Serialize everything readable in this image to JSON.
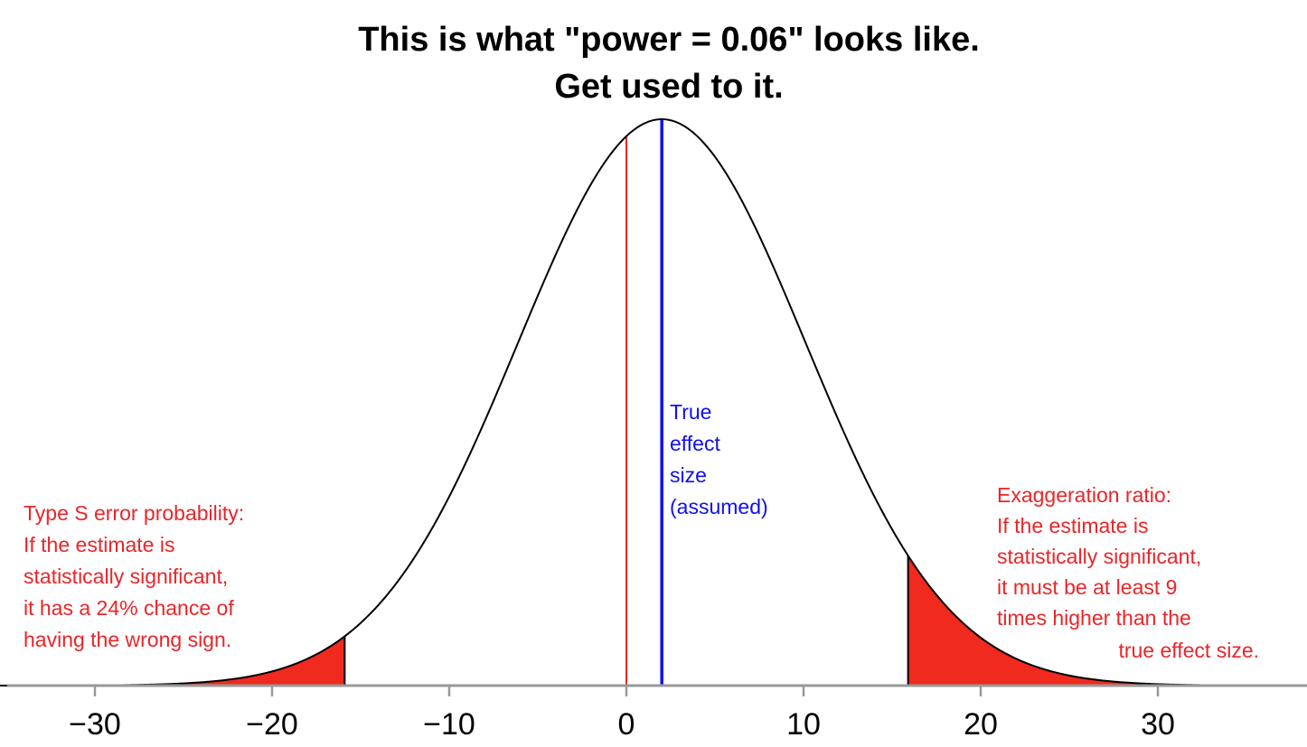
{
  "chart_data": {
    "type": "area",
    "title_lines": [
      "This is what \"power = 0.06\" looks like.",
      "Get used to it."
    ],
    "xlabel": "",
    "ylabel": "",
    "x_ticks": [
      -30,
      -20,
      -10,
      0,
      10,
      20,
      30
    ],
    "x_tick_labels": [
      "−30",
      "−20",
      "−10",
      "0",
      "10",
      "20",
      "30"
    ],
    "xlim": [
      -38,
      38.5
    ],
    "grid": false,
    "distribution": {
      "kind": "normal",
      "mean": 2,
      "sd": 8.1
    },
    "shaded_regions": [
      {
        "name": "lower-tail",
        "from": -38,
        "to": -15.9,
        "color": "#f02a1e"
      },
      {
        "name": "upper-tail",
        "from": 15.9,
        "to": 38.5,
        "color": "#f02a1e"
      }
    ],
    "reference_lines": [
      {
        "name": "zero-line",
        "x": 0,
        "color": "#e8262a"
      },
      {
        "name": "true-effect-line",
        "x": 2,
        "color": "#1010ee"
      }
    ],
    "annotations": {
      "type_s": {
        "color": "#e8262a",
        "lines": [
          "Type S error probability:",
          "If the estimate is",
          "statistically significant,",
          "it has a 24% chance of",
          "having the wrong sign."
        ]
      },
      "true_effect": {
        "color": "#1010ee",
        "lines": [
          "True",
          "effect",
          "size",
          "(assumed)"
        ]
      },
      "exaggeration": {
        "color": "#e8262a",
        "lines": [
          "Exaggeration ratio:",
          "If the estimate is",
          "statistically significant,",
          "it must be at least 9",
          "times higher than the",
          "true effect size."
        ]
      }
    }
  }
}
